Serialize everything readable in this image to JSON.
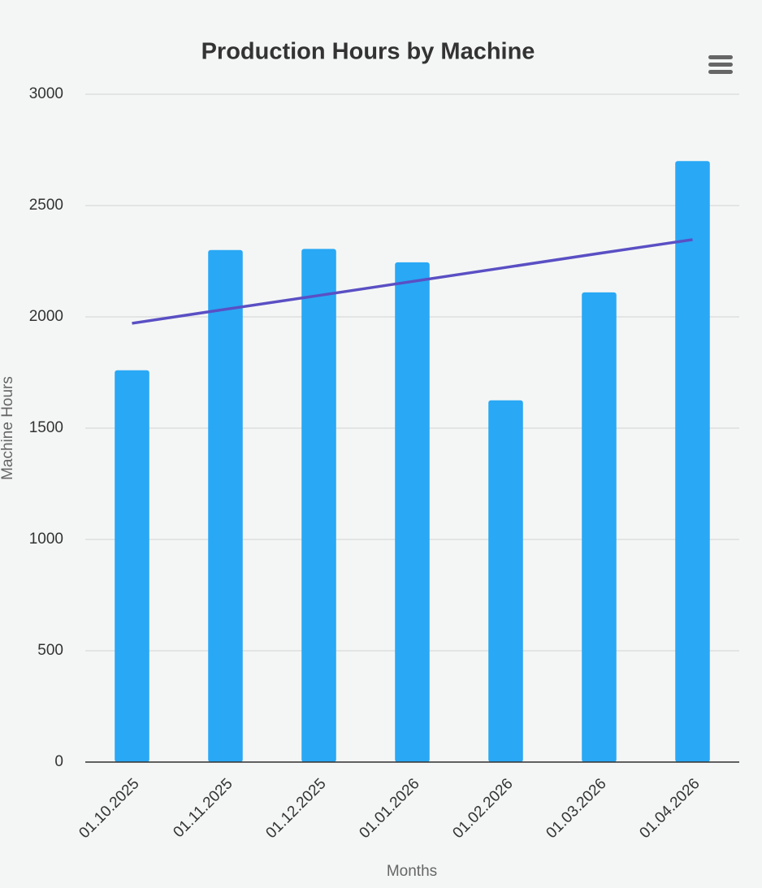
{
  "chart_data": {
    "type": "bar",
    "title": "Production Hours by Machine",
    "x_label": "Months",
    "y_label": "Machine Hours",
    "categories": [
      "01.10.2025",
      "01.11.2025",
      "01.12.2025",
      "01.01.2026",
      "01.02.2026",
      "01.03.2026",
      "01.04.2026"
    ],
    "series": [
      {
        "type": "bar",
        "color": "#29a8f5",
        "values": [
          1760,
          2300,
          2305,
          2245,
          1625,
          2110,
          2700
        ]
      },
      {
        "type": "line",
        "color": "#5a4fc4",
        "values": [
          1971,
          2034,
          2096,
          2159,
          2222,
          2285,
          2347
        ]
      }
    ],
    "ylim": [
      0,
      3000
    ],
    "yticks": [
      0,
      500,
      1000,
      1500,
      2000,
      2500,
      3000
    ],
    "grid": true
  }
}
